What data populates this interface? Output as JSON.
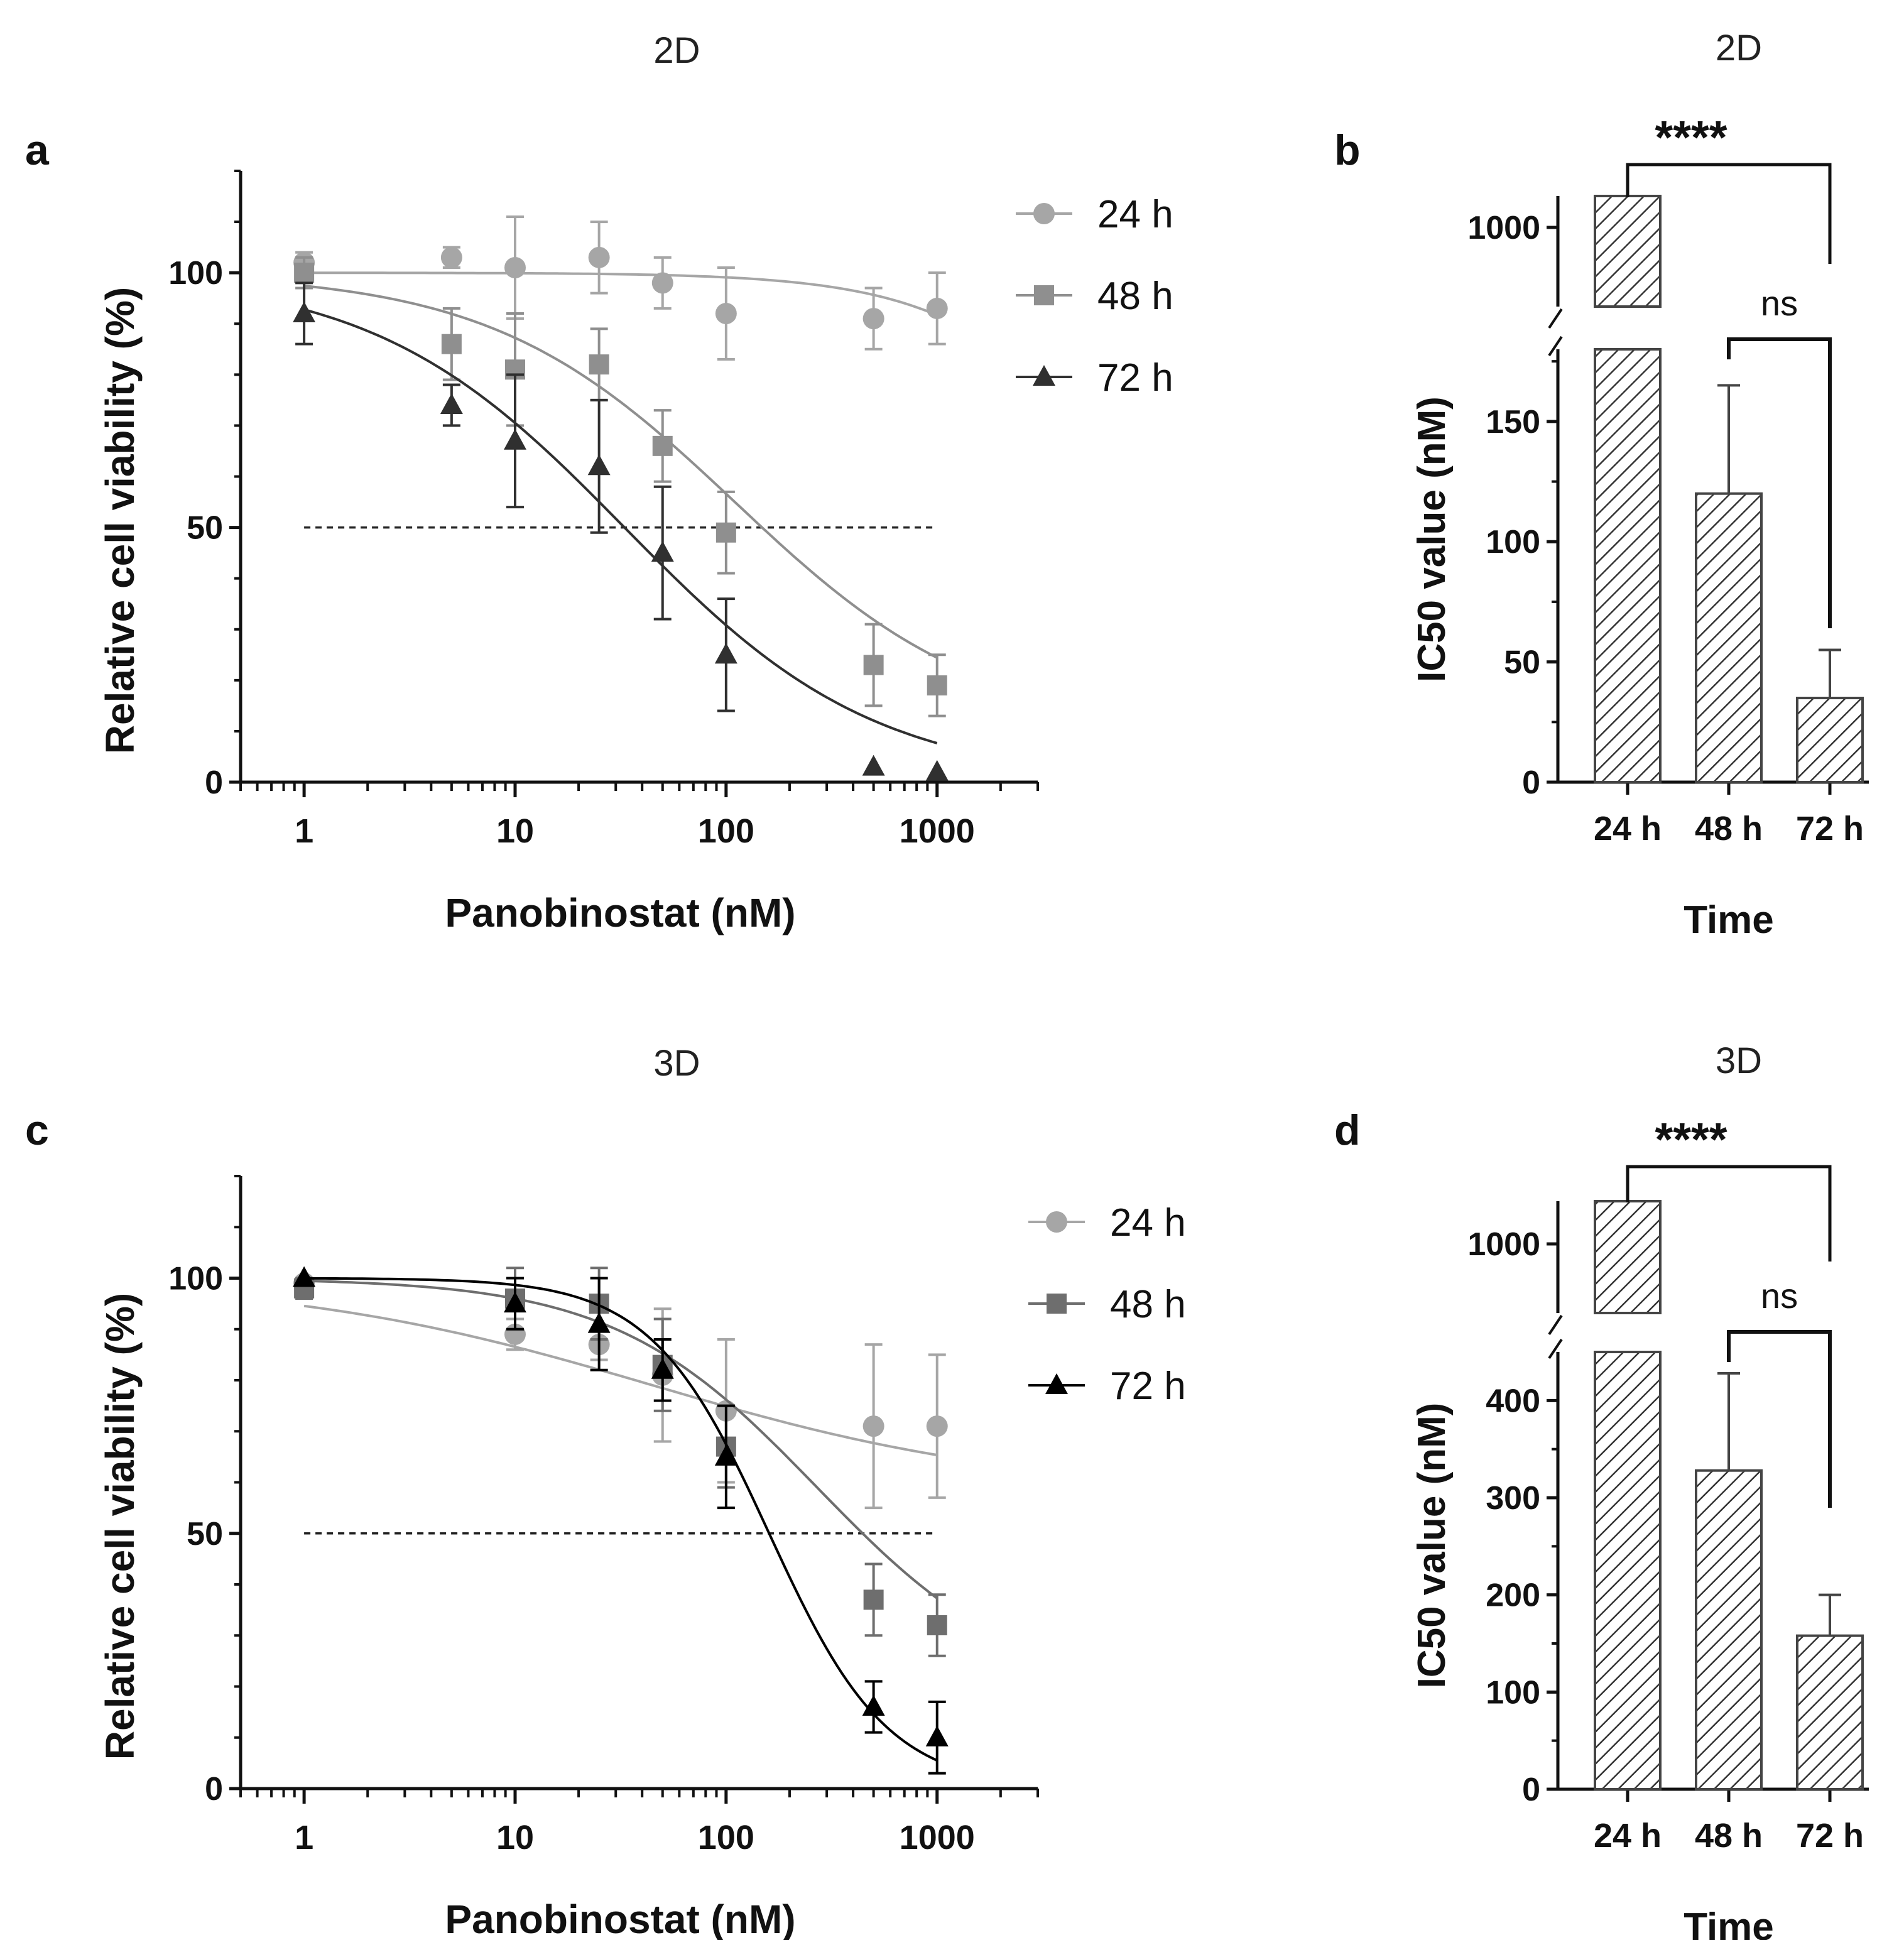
{
  "chart_data": [
    {
      "panel": "a",
      "type": "scatter",
      "title": "2D",
      "xlabel": "Panobinostat (nM)",
      "ylabel": "Relative cell viability (%)",
      "xscale": "log",
      "xlim": [
        0.5,
        3000
      ],
      "ylim": [
        0,
        120
      ],
      "x_ticks": [
        "1",
        "10",
        "100",
        "1000"
      ],
      "y_ticks": [
        "0",
        "50",
        "100"
      ],
      "reference_line_y": 50,
      "legend_position": "top-right",
      "series": [
        {
          "name": "24 h",
          "marker": "circle",
          "color": "#a6a6a6",
          "x": [
            1,
            5,
            10,
            25,
            50,
            100,
            500,
            1000
          ],
          "y": [
            102,
            103,
            101,
            103,
            98,
            92,
            91,
            93
          ],
          "err": [
            2,
            2,
            10,
            7,
            5,
            9,
            6,
            7
          ],
          "fit": {
            "top": 100,
            "bottom": 0,
            "ec50": 11000,
            "hill": 1
          }
        },
        {
          "name": "48 h",
          "marker": "square",
          "color": "#8f8f8f",
          "x": [
            1,
            5,
            10,
            25,
            50,
            100,
            500,
            1000
          ],
          "y": [
            100,
            86,
            81,
            82,
            66,
            49,
            23,
            19
          ],
          "err": [
            3,
            7,
            11,
            7,
            7,
            8,
            8,
            6
          ],
          "fit": {
            "top": 100,
            "bottom": 10,
            "ec50": 110,
            "hill": 0.75
          }
        },
        {
          "name": "72 h",
          "marker": "triangle",
          "color": "#303030",
          "x": [
            1,
            5,
            10,
            25,
            50,
            100,
            500,
            1000
          ],
          "y": [
            92,
            74,
            67,
            62,
            45,
            25,
            3,
            2
          ],
          "err": [
            6,
            4,
            13,
            13,
            13,
            11,
            0,
            0
          ],
          "fit": {
            "top": 100,
            "bottom": 0,
            "ec50": 33,
            "hill": 0.73
          }
        }
      ]
    },
    {
      "panel": "b",
      "type": "bar",
      "title": "2D",
      "xlabel": "Time",
      "ylabel": "IC50 value (nM)",
      "categories": [
        "24 h",
        "48 h",
        "72 h"
      ],
      "values": [
        1000,
        120,
        35
      ],
      "err": [
        0,
        45,
        20
      ],
      "y_ticks_lower": [
        "0",
        "50",
        "100",
        "150"
      ],
      "y_ticks_upper": [
        "1000"
      ],
      "ylim_lower": [
        0,
        180
      ],
      "ylim_upper_label": 1000,
      "axis_break": true,
      "significance": [
        {
          "from": "24 h",
          "to": "72 h",
          "label": "****"
        },
        {
          "from": "48 h",
          "to": "72 h",
          "label": "ns"
        }
      ]
    },
    {
      "panel": "c",
      "type": "scatter",
      "title": "3D",
      "xlabel": "Panobinostat (nM)",
      "ylabel": "Relative cell viability (%)",
      "xscale": "log",
      "xlim": [
        0.5,
        3000
      ],
      "ylim": [
        0,
        120
      ],
      "x_ticks": [
        "1",
        "10",
        "100",
        "1000"
      ],
      "y_ticks": [
        "0",
        "50",
        "100"
      ],
      "reference_line_y": 50,
      "legend_position": "top-right",
      "series": [
        {
          "name": "24 h",
          "marker": "circle",
          "color": "#a6a6a6",
          "x": [
            1,
            10,
            25,
            50,
            100,
            500,
            1000
          ],
          "y": [
            99,
            89,
            87,
            81,
            74,
            71,
            71
          ],
          "err": [
            1,
            3,
            3,
            13,
            14,
            16,
            14
          ],
          "fit": {
            "top": 100,
            "bottom": 58,
            "ec50": 45,
            "hill": 0.5
          }
        },
        {
          "name": "48 h",
          "marker": "square",
          "color": "#6e6e6e",
          "x": [
            1,
            10,
            25,
            50,
            100,
            500,
            1000
          ],
          "y": [
            98,
            96,
            95,
            83,
            67,
            37,
            32
          ],
          "err": [
            2,
            6,
            7,
            9,
            8,
            7,
            6
          ],
          "fit": {
            "top": 100,
            "bottom": 18,
            "ec50": 270,
            "hill": 0.9
          }
        },
        {
          "name": "72 h",
          "marker": "triangle",
          "color": "#000000",
          "x": [
            1,
            10,
            25,
            50,
            100,
            500,
            1000
          ],
          "y": [
            100,
            95,
            91,
            82,
            65,
            16,
            10
          ],
          "err": [
            0,
            5,
            9,
            6,
            10,
            5,
            7
          ],
          "fit": {
            "top": 100,
            "bottom": 0,
            "ec50": 160,
            "hill": 1.55
          }
        }
      ]
    },
    {
      "panel": "d",
      "type": "bar",
      "title": "3D",
      "xlabel": "Time",
      "ylabel": "IC50 value (nM)",
      "categories": [
        "24 h",
        "48 h",
        "72 h"
      ],
      "values": [
        1000,
        328,
        158
      ],
      "err": [
        0,
        100,
        42
      ],
      "y_ticks_lower": [
        "0",
        "100",
        "200",
        "300",
        "400"
      ],
      "y_ticks_upper": [
        "1000"
      ],
      "ylim_lower": [
        0,
        450
      ],
      "ylim_upper_label": 1000,
      "axis_break": true,
      "significance": [
        {
          "from": "24 h",
          "to": "72 h",
          "label": "****"
        },
        {
          "from": "48 h",
          "to": "72 h",
          "label": "ns"
        }
      ]
    }
  ]
}
